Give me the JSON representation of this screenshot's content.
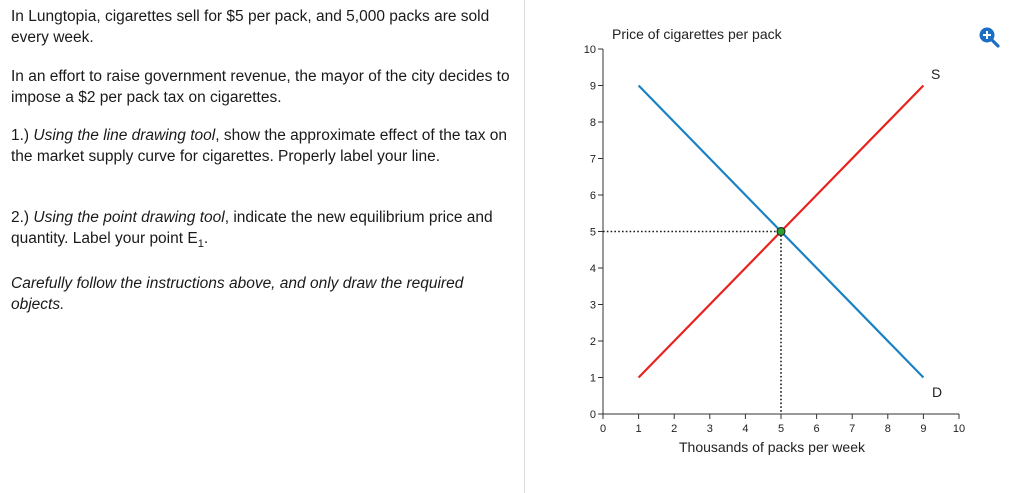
{
  "question": {
    "intro": "In Lungtopia, cigarettes sell for $5 per pack, and 5,000 packs are sold every week.",
    "mayor": "In an effort to raise government revenue, the mayor of the city decides to impose a $2 per pack tax on cigarettes.",
    "step1_number": "1.) ",
    "step1_italic": "Using the line drawing tool",
    "step1_rest": ", show the approximate effect of the tax on the market supply curve for cigarettes. Properly label your line.",
    "step2_number": "2.) ",
    "step2_italic": "Using the point drawing tool",
    "step2_rest": ", indicate the new equilibrium price and quantity. Label your point E",
    "step2_sub": "1",
    "step2_end": ".",
    "note": "Carefully follow the instructions above, and only draw the required objects."
  },
  "graph": {
    "ylabel": "Price of cigarettes per pack",
    "xlabel": "Thousands of packs per week",
    "supply_label": "S",
    "demand_label": "D",
    "zoom_icon": "zoom-in-icon"
  },
  "chart_data": {
    "type": "line",
    "xlim": [
      0,
      10
    ],
    "ylim": [
      0,
      10
    ],
    "x_ticks": [
      "0",
      "1",
      "2",
      "3",
      "4",
      "5",
      "6",
      "7",
      "8",
      "9",
      "10"
    ],
    "y_ticks": [
      "0",
      "1",
      "2",
      "3",
      "4",
      "5",
      "6",
      "7",
      "8",
      "9",
      "10"
    ],
    "series": [
      {
        "name": "S",
        "color": "#e8231f",
        "points": [
          [
            1,
            1
          ],
          [
            9,
            9
          ]
        ]
      },
      {
        "name": "D",
        "color": "#1a82c4",
        "points": [
          [
            1,
            9
          ],
          [
            9,
            1
          ]
        ]
      }
    ],
    "equilibrium": {
      "x": 5,
      "y": 5,
      "color": "#2e9c2e"
    },
    "grid": false
  }
}
